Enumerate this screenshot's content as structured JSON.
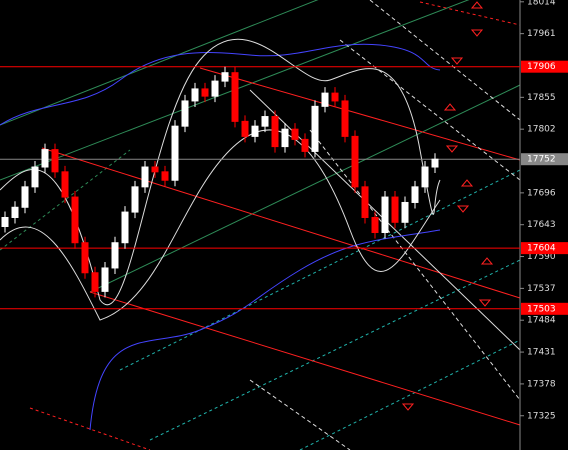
{
  "chart_data": {
    "type": "candlestick",
    "ylim": [
      17268,
      18017
    ],
    "yticks": [
      18014,
      17961,
      17855,
      17802,
      17696,
      17643,
      17590,
      17537,
      17484,
      17431,
      17378,
      17325
    ],
    "grid": false,
    "up_color": "#ffffff",
    "down_color": "#ff0000",
    "price_levels": [
      {
        "value": 17906,
        "color": "#ff0000"
      },
      {
        "value": 17752,
        "color": "#888888"
      },
      {
        "value": 17604,
        "color": "#ff0000"
      },
      {
        "value": 17503,
        "color": "#ff0000"
      }
    ],
    "open": [
      17640,
      17655,
      17672,
      17706,
      17739,
      17768,
      17731,
      17689,
      17613,
      17563,
      17532,
      17571,
      17613,
      17664,
      17706,
      17739,
      17731,
      17717,
      17807,
      17849,
      17869,
      17857,
      17882,
      17896,
      17815,
      17790,
      17807,
      17823,
      17773,
      17802,
      17785,
      17765,
      17840,
      17862,
      17849,
      17790,
      17706,
      17655,
      17630,
      17689,
      17647,
      17680,
      17706,
      17739
    ],
    "high": [
      17665,
      17682,
      17716,
      17749,
      17778,
      17778,
      17741,
      17699,
      17623,
      17573,
      17581,
      17623,
      17674,
      17716,
      17749,
      17749,
      17741,
      17817,
      17859,
      17879,
      17879,
      17892,
      17906,
      17906,
      17825,
      17817,
      17833,
      17833,
      17812,
      17812,
      17795,
      17850,
      17872,
      17872,
      17859,
      17800,
      17716,
      17665,
      17699,
      17699,
      17690,
      17716,
      17749,
      17762
    ],
    "low": [
      17630,
      17645,
      17662,
      17696,
      17729,
      17721,
      17679,
      17603,
      17553,
      17522,
      17522,
      17561,
      17603,
      17654,
      17696,
      17721,
      17707,
      17707,
      17797,
      17839,
      17847,
      17847,
      17872,
      17805,
      17780,
      17780,
      17797,
      17763,
      17763,
      17775,
      17755,
      17755,
      17830,
      17839,
      17780,
      17696,
      17645,
      17620,
      17620,
      17637,
      17637,
      17670,
      17696,
      17729
    ],
    "close": [
      17655,
      17672,
      17706,
      17739,
      17768,
      17731,
      17689,
      17613,
      17563,
      17532,
      17571,
      17613,
      17664,
      17706,
      17739,
      17731,
      17717,
      17807,
      17849,
      17869,
      17857,
      17882,
      17896,
      17815,
      17790,
      17807,
      17823,
      17773,
      17802,
      17785,
      17765,
      17840,
      17862,
      17849,
      17790,
      17706,
      17655,
      17630,
      17689,
      17647,
      17680,
      17706,
      17739,
      17752
    ]
  }
}
